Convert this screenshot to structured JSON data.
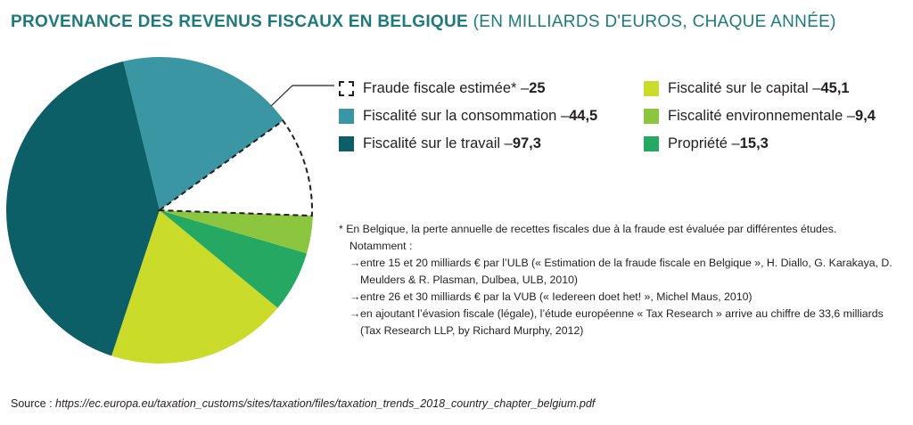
{
  "title": {
    "main": "PROVENANCE DES REVENUS FISCAUX EN BELGIQUE",
    "sub": "(EN MILLIARDS D'EUROS, CHAQUE ANNÉE)"
  },
  "chart_data": {
    "type": "pie",
    "title": "PROVENANCE DES REVENUS FISCAUX EN BELGIQUE (EN MILLIARDS D'EUROS, CHAQUE ANNÉE)",
    "unit": "milliards d'euros",
    "slices": [
      {
        "label": "Fraude fiscale estimée*",
        "value": 25,
        "value_label": "25",
        "color": "#ffffff",
        "style": "dashed"
      },
      {
        "label": "Fiscalité environnementale",
        "value": 9.4,
        "value_label": "9,4",
        "color": "#8cc63f",
        "style": "solid"
      },
      {
        "label": "Propriété",
        "value": 15.3,
        "value_label": "15,3",
        "color": "#25a862",
        "style": "solid"
      },
      {
        "label": "Fiscalité sur le capital",
        "value": 45.1,
        "value_label": "45,1",
        "color": "#cbdb2a",
        "style": "solid"
      },
      {
        "label": "Fiscalité sur le travail",
        "value": 97.3,
        "value_label": "97,3",
        "color": "#0c5f66",
        "style": "solid"
      },
      {
        "label": "Fiscalité sur la consommation",
        "value": 44.5,
        "value_label": "44,5",
        "color": "#3a96a2",
        "style": "solid"
      }
    ]
  },
  "legend": {
    "col1": [
      {
        "label": "Fraude fiscale estimée* – ",
        "value": "25",
        "color": "#ffffff",
        "dashed": true
      },
      {
        "label": "Fiscalité sur la consommation – ",
        "value": "44,5",
        "color": "#3a96a2",
        "dashed": false
      },
      {
        "label": "Fiscalité sur le travail – ",
        "value": "97,3",
        "color": "#0c5f66",
        "dashed": false
      }
    ],
    "col2": [
      {
        "label": "Fiscalité sur le capital – ",
        "value": "45,1",
        "color": "#cbdb2a",
        "dashed": false
      },
      {
        "label": "Fiscalité environnementale – ",
        "value": "9,4",
        "color": "#8cc63f",
        "dashed": false
      },
      {
        "label": "Propriété – ",
        "value": "15,3",
        "color": "#25a862",
        "dashed": false
      }
    ]
  },
  "footnote": {
    "intro": "* En Belgique, la perte annuelle de recettes fiscales due à la fraude est évaluée par différentes études.",
    "notamment": "Notamment :",
    "arrow": "→",
    "bullets": [
      "entre 15 et 20 milliards € par l’ULB (« Estimation de la fraude fiscale en Belgique », H. Diallo, G. Karakaya, D. Meulders & R. Plasman, Dulbea, ULB, 2010)",
      "entre 26 et 30 milliards € par la VUB (« Iedereen doet het! », Michel Maus, 2010)",
      "en ajoutant l’évasion fiscale (légale), l’étude européenne « Tax Research » arrive au chiffre de 33,6 milliards (Tax Research LLP, by Richard Murphy, 2012)"
    ]
  },
  "source": {
    "label": "Source : ",
    "url": "https://ec.europa.eu/taxation_customs/sites/taxation/files/taxation_trends_2018_country_chapter_belgium.pdf"
  }
}
